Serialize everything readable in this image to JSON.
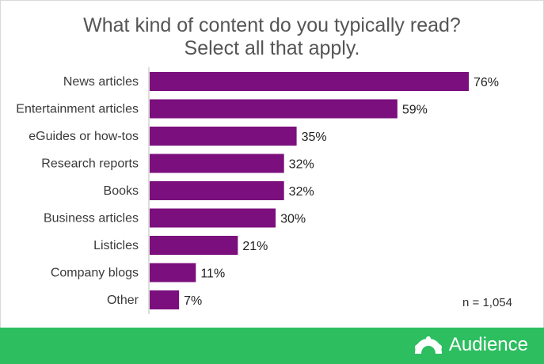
{
  "title": {
    "line1": "What kind of content do you typically read?",
    "line2": "Select all that apply."
  },
  "note": "n = 1,054",
  "brand": {
    "name": "Audience",
    "icon": "monkey-logo-icon"
  },
  "colors": {
    "bar": "#7b0f7d",
    "footer": "#2dbe60",
    "axis": "#bbbbbb"
  },
  "chart_data": {
    "type": "bar",
    "orientation": "horizontal",
    "categories": [
      "News articles",
      "Entertainment articles",
      "eGuides or how-tos",
      "Research reports",
      "Books",
      "Business articles",
      "Listicles",
      "Company blogs",
      "Other"
    ],
    "values": [
      76,
      59,
      35,
      32,
      32,
      30,
      21,
      11,
      7
    ],
    "value_labels": [
      "76%",
      "59%",
      "35%",
      "32%",
      "32%",
      "30%",
      "21%",
      "11%",
      "7%"
    ],
    "xlim": [
      0,
      80
    ],
    "grid": false,
    "legend": "none"
  }
}
